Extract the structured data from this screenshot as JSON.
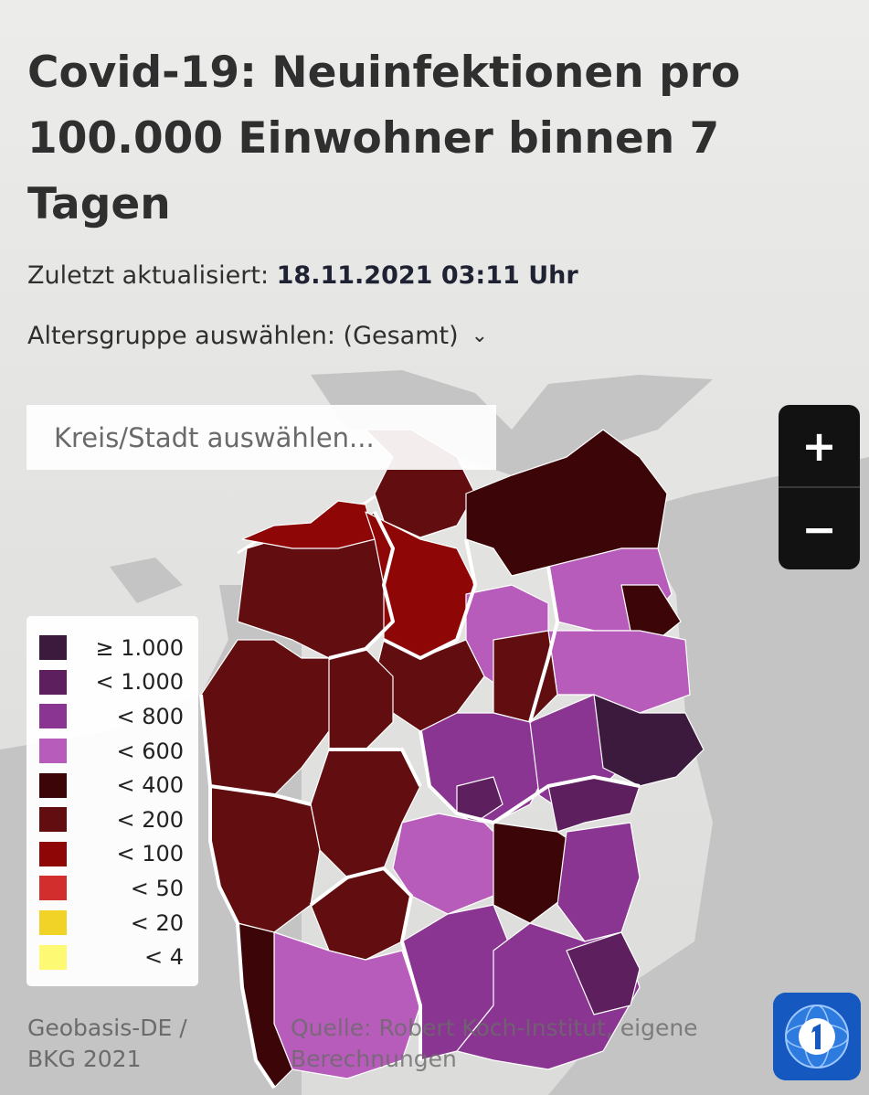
{
  "header": {
    "title": "Covid-19: Neuinfektionen pro 100.000 Einwohner binnen 7 Tagen",
    "updated_label": "Zuletzt aktualisiert:",
    "updated_value": "18.11.2021 03:11 Uhr",
    "agegroup_label": "Altersgruppe auswählen: (Gesamt)",
    "agegroup_icon": "chevron-down-icon"
  },
  "search": {
    "placeholder": "Kreis/Stadt auswählen..."
  },
  "zoom": {
    "in_label": "+",
    "out_label": "−"
  },
  "legend": {
    "items": [
      {
        "label": "≥ 1.000",
        "color": "#3b1a3e"
      },
      {
        "label": "< 1.000",
        "color": "#5d1f5e"
      },
      {
        "label": "< 800",
        "color": "#8a3591"
      },
      {
        "label": "< 600",
        "color": "#b75cbb"
      },
      {
        "label": "< 400",
        "color": "#3c0508"
      },
      {
        "label": "< 200",
        "color": "#620d10"
      },
      {
        "label": "< 100",
        "color": "#8e0606"
      },
      {
        "label": "< 50",
        "color": "#d22e2e"
      },
      {
        "label": "< 20",
        "color": "#f1d327"
      },
      {
        "label": "< 4",
        "color": "#fdf972"
      }
    ]
  },
  "attribution": {
    "left": "Geobasis-DE / BKG 2021",
    "right": "Quelle: Robert Koch-Institut, eigene Berechnungen"
  },
  "logo": {
    "icon": "tagesschau-logo-icon"
  }
}
